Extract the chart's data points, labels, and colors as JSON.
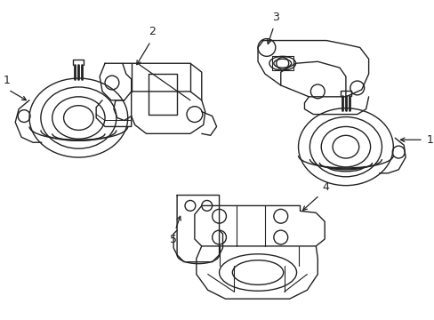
{
  "background_color": "#ffffff",
  "line_color": "#222222",
  "line_width": 1.0,
  "figsize": [
    4.89,
    3.6
  ],
  "dpi": 100
}
